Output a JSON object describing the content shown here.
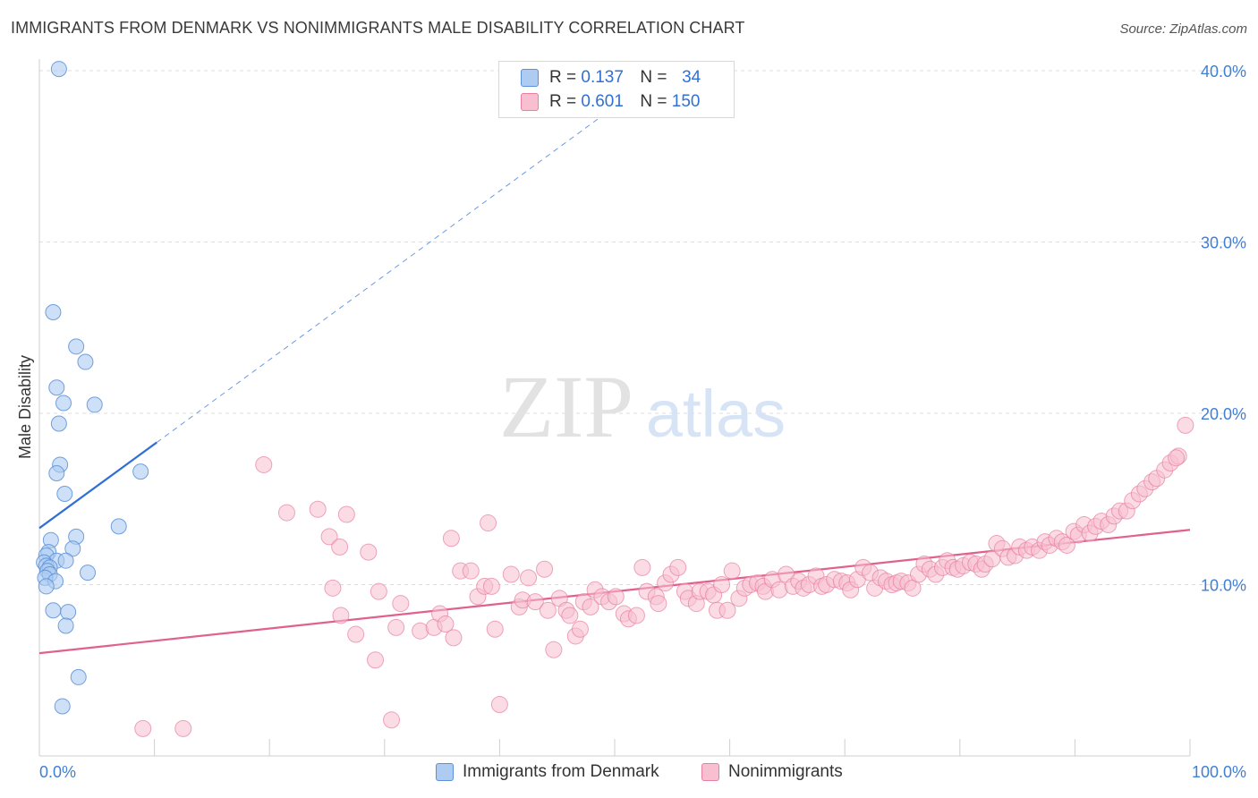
{
  "header": {
    "title": "IMMIGRANTS FROM DENMARK VS NONIMMIGRANTS MALE DISABILITY CORRELATION CHART",
    "source": "Source: ZipAtlas.com"
  },
  "watermark": {
    "zip": "ZIP",
    "atlas": "atlas"
  },
  "stats": {
    "r_label": "R =",
    "n_label": "N =",
    "rows": [
      {
        "r": "0.137",
        "n": "34"
      },
      {
        "r": "0.601",
        "n": "150"
      }
    ]
  },
  "colors": {
    "blue_fill": "#aecbf2",
    "blue_stroke": "#5b90d8",
    "blue_line": "#2f6fd6",
    "pink_fill": "#f8bfd0",
    "pink_stroke": "#e77fa2",
    "pink_line": "#e0608e",
    "axis_label": "#3f7fd6",
    "grid": "#dcdcdc"
  },
  "chart_data": {
    "type": "scatter",
    "title": "IMMIGRANTS FROM DENMARK VS NONIMMIGRANTS MALE DISABILITY CORRELATION CHART",
    "xlabel": "",
    "ylabel": "Male Disability",
    "xlim": [
      0,
      100
    ],
    "ylim": [
      0,
      40
    ],
    "x_tick_labels": [
      "0.0%",
      "100.0%"
    ],
    "y_ticks": [
      10,
      20,
      30,
      40
    ],
    "y_tick_labels": [
      "10.0%",
      "20.0%",
      "30.0%",
      "40.0%"
    ],
    "grid": true,
    "legend_position": "bottom",
    "series": [
      {
        "name": "Immigrants from Denmark",
        "color": "#aecbf2",
        "r": 0.137,
        "n": 34,
        "trend": {
          "x0": 0,
          "y0": 13.3,
          "x1": 10.2,
          "y1": 18.3,
          "dashed_to": {
            "x": 50,
            "y": 37.9
          }
        },
        "points": [
          [
            1.7,
            40.1
          ],
          [
            1.2,
            25.9
          ],
          [
            3.2,
            23.9
          ],
          [
            4.0,
            23.0
          ],
          [
            1.5,
            21.5
          ],
          [
            2.1,
            20.6
          ],
          [
            4.8,
            20.5
          ],
          [
            1.7,
            19.4
          ],
          [
            1.8,
            17.0
          ],
          [
            1.5,
            16.5
          ],
          [
            8.8,
            16.6
          ],
          [
            2.2,
            15.3
          ],
          [
            6.9,
            13.4
          ],
          [
            3.2,
            12.8
          ],
          [
            1.0,
            12.6
          ],
          [
            2.9,
            12.1
          ],
          [
            0.8,
            11.9
          ],
          [
            0.6,
            11.7
          ],
          [
            1.5,
            11.4
          ],
          [
            2.3,
            11.4
          ],
          [
            0.4,
            11.3
          ],
          [
            0.6,
            11.1
          ],
          [
            0.9,
            11.0
          ],
          [
            0.7,
            10.8
          ],
          [
            0.9,
            10.6
          ],
          [
            4.2,
            10.7
          ],
          [
            0.5,
            10.4
          ],
          [
            1.4,
            10.2
          ],
          [
            0.6,
            9.9
          ],
          [
            1.2,
            8.5
          ],
          [
            2.5,
            8.4
          ],
          [
            2.3,
            7.6
          ],
          [
            3.4,
            4.6
          ],
          [
            2.0,
            2.9
          ]
        ]
      },
      {
        "name": "Nonimmigrants",
        "color": "#f8bfd0",
        "r": 0.601,
        "n": 150,
        "trend": {
          "x0": 0,
          "y0": 6.0,
          "x1": 100,
          "y1": 13.2
        },
        "points": [
          [
            9.0,
            1.6
          ],
          [
            12.5,
            1.6
          ],
          [
            19.5,
            17.0
          ],
          [
            21.5,
            14.2
          ],
          [
            24.2,
            14.4
          ],
          [
            26.7,
            14.1
          ],
          [
            25.2,
            12.8
          ],
          [
            26.1,
            12.2
          ],
          [
            28.6,
            11.9
          ],
          [
            25.5,
            9.8
          ],
          [
            26.2,
            8.2
          ],
          [
            27.5,
            7.1
          ],
          [
            29.2,
            5.6
          ],
          [
            29.5,
            9.6
          ],
          [
            30.6,
            2.1
          ],
          [
            31.0,
            7.5
          ],
          [
            31.4,
            8.9
          ],
          [
            33.1,
            7.3
          ],
          [
            34.3,
            7.5
          ],
          [
            34.8,
            8.3
          ],
          [
            35.3,
            7.7
          ],
          [
            36.0,
            6.9
          ],
          [
            35.8,
            12.7
          ],
          [
            36.6,
            10.8
          ],
          [
            37.5,
            10.8
          ],
          [
            38.1,
            9.3
          ],
          [
            38.7,
            9.9
          ],
          [
            39.0,
            13.6
          ],
          [
            39.6,
            7.4
          ],
          [
            39.3,
            9.9
          ],
          [
            40.0,
            3.0
          ],
          [
            41.0,
            10.6
          ],
          [
            41.7,
            8.7
          ],
          [
            42.0,
            9.1
          ],
          [
            42.5,
            10.4
          ],
          [
            43.1,
            9.0
          ],
          [
            43.9,
            10.9
          ],
          [
            44.2,
            8.5
          ],
          [
            44.7,
            6.2
          ],
          [
            45.2,
            9.2
          ],
          [
            45.8,
            8.5
          ],
          [
            46.1,
            8.2
          ],
          [
            46.6,
            7.0
          ],
          [
            47.0,
            7.4
          ],
          [
            47.3,
            9.0
          ],
          [
            47.9,
            8.7
          ],
          [
            48.3,
            9.7
          ],
          [
            48.9,
            9.3
          ],
          [
            49.5,
            9.0
          ],
          [
            50.1,
            9.3
          ],
          [
            50.8,
            8.3
          ],
          [
            51.2,
            8.0
          ],
          [
            51.9,
            8.2
          ],
          [
            52.4,
            11.0
          ],
          [
            52.8,
            9.6
          ],
          [
            53.6,
            9.3
          ],
          [
            53.8,
            8.9
          ],
          [
            54.4,
            10.1
          ],
          [
            54.9,
            10.6
          ],
          [
            55.5,
            11.0
          ],
          [
            56.1,
            9.6
          ],
          [
            56.4,
            9.2
          ],
          [
            57.1,
            8.9
          ],
          [
            57.4,
            9.6
          ],
          [
            58.1,
            9.6
          ],
          [
            58.6,
            9.4
          ],
          [
            58.9,
            8.5
          ],
          [
            59.3,
            10.0
          ],
          [
            59.8,
            8.5
          ],
          [
            60.2,
            10.8
          ],
          [
            60.8,
            9.2
          ],
          [
            61.3,
            9.8
          ],
          [
            61.8,
            10.0
          ],
          [
            62.4,
            10.1
          ],
          [
            62.9,
            9.9
          ],
          [
            63.1,
            9.6
          ],
          [
            63.7,
            10.3
          ],
          [
            64.3,
            9.7
          ],
          [
            64.9,
            10.6
          ],
          [
            65.5,
            9.9
          ],
          [
            66.0,
            10.2
          ],
          [
            66.4,
            9.8
          ],
          [
            66.9,
            10.0
          ],
          [
            67.5,
            10.5
          ],
          [
            68.0,
            9.9
          ],
          [
            68.4,
            10.0
          ],
          [
            69.1,
            10.3
          ],
          [
            69.7,
            10.2
          ],
          [
            70.2,
            10.1
          ],
          [
            70.5,
            9.7
          ],
          [
            71.1,
            10.3
          ],
          [
            71.6,
            11.0
          ],
          [
            72.2,
            10.7
          ],
          [
            72.6,
            9.8
          ],
          [
            73.1,
            10.4
          ],
          [
            73.6,
            10.2
          ],
          [
            74.1,
            10.0
          ],
          [
            74.5,
            10.1
          ],
          [
            74.9,
            10.2
          ],
          [
            75.5,
            10.1
          ],
          [
            75.9,
            9.8
          ],
          [
            76.4,
            10.6
          ],
          [
            76.9,
            11.2
          ],
          [
            77.4,
            10.9
          ],
          [
            77.9,
            10.6
          ],
          [
            78.5,
            11.0
          ],
          [
            78.9,
            11.4
          ],
          [
            79.4,
            11.0
          ],
          [
            79.8,
            10.9
          ],
          [
            80.3,
            11.1
          ],
          [
            80.9,
            11.3
          ],
          [
            81.4,
            11.2
          ],
          [
            81.9,
            10.9
          ],
          [
            82.2,
            11.2
          ],
          [
            82.8,
            11.5
          ],
          [
            83.2,
            12.4
          ],
          [
            83.7,
            12.1
          ],
          [
            84.2,
            11.6
          ],
          [
            84.8,
            11.7
          ],
          [
            85.2,
            12.2
          ],
          [
            85.8,
            12.0
          ],
          [
            86.3,
            12.2
          ],
          [
            86.9,
            12.0
          ],
          [
            87.4,
            12.5
          ],
          [
            87.8,
            12.3
          ],
          [
            88.4,
            12.7
          ],
          [
            88.9,
            12.5
          ],
          [
            89.3,
            12.3
          ],
          [
            89.9,
            13.1
          ],
          [
            90.3,
            12.9
          ],
          [
            90.8,
            13.5
          ],
          [
            91.3,
            13.0
          ],
          [
            91.8,
            13.4
          ],
          [
            92.3,
            13.7
          ],
          [
            92.9,
            13.5
          ],
          [
            93.4,
            14.0
          ],
          [
            93.9,
            14.3
          ],
          [
            94.5,
            14.3
          ],
          [
            95.0,
            14.9
          ],
          [
            95.6,
            15.3
          ],
          [
            96.1,
            15.6
          ],
          [
            96.7,
            16.0
          ],
          [
            97.1,
            16.2
          ],
          [
            97.8,
            16.7
          ],
          [
            98.3,
            17.1
          ],
          [
            99.0,
            17.5
          ],
          [
            99.6,
            19.3
          ],
          [
            98.8,
            17.4
          ]
        ]
      }
    ]
  }
}
